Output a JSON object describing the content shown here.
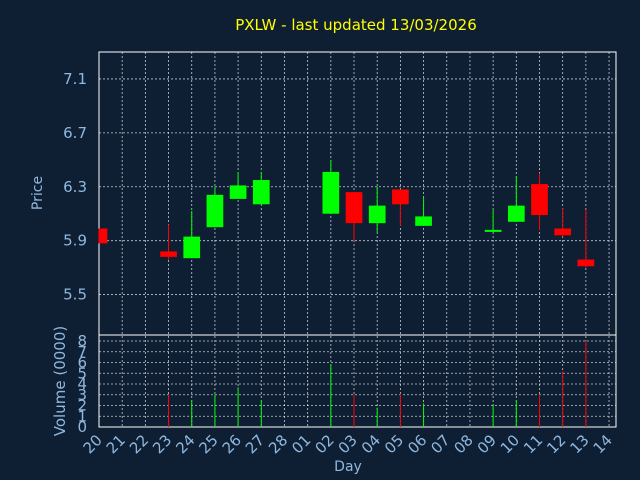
{
  "chart_data": {
    "type": "candlestick",
    "title": "PXLW - last updated 13/03/2026",
    "xlabel": "Day",
    "ylabel": "Price",
    "vlabel": "Volume (0000)",
    "grid": true,
    "colors": {
      "background": "#0f1f33",
      "up": "#00ff00",
      "down": "#ff0000",
      "title": "#ffff00",
      "axis_text": "#8fb8e0",
      "frame": "#ffffff"
    },
    "price_ylim": [
      5.2,
      7.3
    ],
    "price_ticks": [
      "5.5",
      "5.9",
      "6.3",
      "6.7",
      "7.1"
    ],
    "volume_ylim": [
      0,
      8
    ],
    "volume_ticks": [
      "0",
      "1",
      "2",
      "3",
      "4",
      "5",
      "6",
      "7",
      "8"
    ],
    "x_ticks": [
      "20",
      "21",
      "22",
      "23",
      "24",
      "25",
      "26",
      "27",
      "28",
      "01",
      "02",
      "03",
      "04",
      "05",
      "06",
      "07",
      "08",
      "09",
      "10",
      "11",
      "12",
      "13",
      "14"
    ],
    "candles": [
      {
        "day": "20",
        "open": 5.99,
        "close": 5.88,
        "high": 5.99,
        "low": 5.88,
        "volume": 0
      },
      {
        "day": "23",
        "open": 5.82,
        "close": 5.78,
        "high": 6.02,
        "low": 5.76,
        "volume": 3.0
      },
      {
        "day": "24",
        "open": 5.77,
        "close": 5.93,
        "high": 6.12,
        "low": 5.77,
        "volume": 2.5
      },
      {
        "day": "25",
        "open": 6.0,
        "close": 6.24,
        "high": 6.3,
        "low": 6.0,
        "volume": 3.0
      },
      {
        "day": "26",
        "open": 6.21,
        "close": 6.31,
        "high": 6.41,
        "low": 6.21,
        "volume": 3.7
      },
      {
        "day": "27",
        "open": 6.17,
        "close": 6.35,
        "high": 6.41,
        "low": 6.17,
        "volume": 2.5
      },
      {
        "day": "02",
        "open": 6.1,
        "close": 6.41,
        "high": 6.5,
        "low": 6.1,
        "volume": 5.8
      },
      {
        "day": "03",
        "open": 6.26,
        "close": 6.03,
        "high": 6.26,
        "low": 5.9,
        "volume": 3.0
      },
      {
        "day": "04",
        "open": 6.03,
        "close": 6.16,
        "high": 6.3,
        "low": 5.96,
        "volume": 1.8
      },
      {
        "day": "05",
        "open": 6.28,
        "close": 6.17,
        "high": 6.28,
        "low": 6.01,
        "volume": 3.1
      },
      {
        "day": "06",
        "open": 6.01,
        "close": 6.08,
        "high": 6.22,
        "low": 6.01,
        "volume": 2.2
      },
      {
        "day": "09",
        "open": 5.97,
        "close": 5.98,
        "high": 6.13,
        "low": 5.96,
        "volume": 2.1
      },
      {
        "day": "10",
        "open": 6.04,
        "close": 6.16,
        "high": 6.38,
        "low": 6.04,
        "volume": 2.5
      },
      {
        "day": "11",
        "open": 6.32,
        "close": 6.09,
        "high": 6.4,
        "low": 5.98,
        "volume": 3.0
      },
      {
        "day": "12",
        "open": 5.99,
        "close": 5.94,
        "high": 6.14,
        "low": 5.93,
        "volume": 5.2
      },
      {
        "day": "13",
        "open": 5.76,
        "close": 5.71,
        "high": 6.13,
        "low": 5.7,
        "volume": 8.0
      }
    ]
  }
}
